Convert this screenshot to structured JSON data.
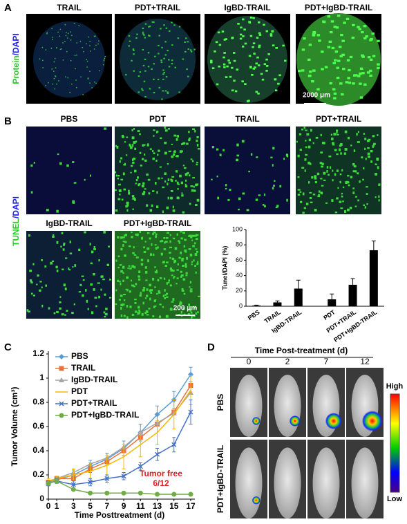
{
  "panel_a": {
    "label": "A",
    "stain": "Protein",
    "counterstain": "/DAPI",
    "columns": [
      "TRAIL",
      "PDT+TRAIL",
      "IgBD-TRAIL",
      "PDT+IgBD-TRAIL"
    ],
    "scale_bar": "2000 μm"
  },
  "panel_b": {
    "label": "B",
    "stain": "TUNEL",
    "counterstain": "/DAPI",
    "images": [
      "PBS",
      "PDT",
      "TRAIL",
      "PDT+TRAIL",
      "IgBD-TRAIL",
      "PDT+IgBD-TRAIL"
    ],
    "scale_bar": "200 μm"
  },
  "panel_c": {
    "label": "C"
  },
  "panel_d": {
    "label": "D",
    "header": "Time Post-treatment (d)",
    "columns": [
      "0",
      "2",
      "7",
      "12"
    ],
    "rows": [
      "PBS",
      "PDT+IgBD-TRAIL"
    ],
    "scale_high": "High",
    "scale_low": "Low"
  },
  "chart_data": [
    {
      "type": "bar",
      "y_label": "Tunel/DAPI (%)",
      "categories": [
        "PBS",
        "TRAIL",
        "IgBD-TRAIL",
        "PDT",
        "PDT+TRAIL",
        "PDT+IgBD-TRAIL"
      ],
      "values": [
        1,
        5,
        23,
        9,
        28,
        73
      ],
      "errors": [
        0.5,
        2,
        11,
        7,
        8,
        12
      ],
      "color": "#000000",
      "ylim": [
        0,
        100
      ],
      "yticks": [
        0,
        20,
        40,
        60,
        80,
        100
      ]
    },
    {
      "type": "line",
      "x_label": "Time Posttreatment (d)",
      "y_label": "Tumor Volume (cm³)",
      "x": [
        0,
        1,
        3,
        5,
        7,
        9,
        11,
        13,
        15,
        17
      ],
      "series": [
        {
          "name": "PBS",
          "color": "#5b9bd5",
          "marker": "diamond",
          "values": [
            0.13,
            0.16,
            0.2,
            0.27,
            0.33,
            0.42,
            0.55,
            0.7,
            0.82,
            1.03
          ],
          "errors": [
            0.02,
            0.02,
            0.04,
            0.05,
            0.05,
            0.06,
            0.07,
            0.07,
            0.07,
            0.06
          ]
        },
        {
          "name": "TRAIL",
          "color": "#e8743b",
          "marker": "square",
          "values": [
            0.14,
            0.17,
            0.17,
            0.25,
            0.31,
            0.4,
            0.51,
            0.62,
            0.72,
            0.94
          ]
        },
        {
          "name": "IgBD-TRAIL",
          "color": "#a5a5a5",
          "marker": "triangle",
          "values": [
            0.13,
            0.17,
            0.22,
            0.29,
            0.34,
            0.43,
            0.55,
            0.63,
            0.71,
            0.88
          ]
        },
        {
          "name": "PDT",
          "color": "#f5b700",
          "marker": "none",
          "values": [
            0.15,
            0.17,
            0.2,
            0.23,
            0.28,
            0.35,
            0.45,
            0.55,
            0.7,
            0.9
          ],
          "errors": [
            0.02,
            0.02,
            0.05,
            0.07,
            0.08,
            0.1,
            0.1,
            0.1,
            0.12,
            0.12
          ]
        },
        {
          "name": "PDT+TRAIL",
          "color": "#4472c4",
          "marker": "cross",
          "values": [
            0.13,
            0.15,
            0.12,
            0.14,
            0.17,
            0.19,
            0.27,
            0.37,
            0.45,
            0.72
          ],
          "errors": [
            0.02,
            0.02,
            0.03,
            0.03,
            0.03,
            0.03,
            0.03,
            0.05,
            0.06,
            0.1
          ]
        },
        {
          "name": "PDT+IgBD-TRAIL",
          "color": "#70ad47",
          "marker": "circle",
          "values": [
            0.13,
            0.15,
            0.08,
            0.05,
            0.05,
            0.05,
            0.05,
            0.04,
            0.04,
            0.04
          ]
        }
      ],
      "xlim": [
        0,
        17
      ],
      "ylim": [
        0,
        1.2
      ],
      "xticks": [
        0,
        1,
        3,
        5,
        7,
        9,
        11,
        13,
        15,
        17
      ],
      "yticks": [
        0,
        0.2,
        0.4,
        0.6,
        0.8,
        1,
        1.2
      ],
      "annotations": [
        "Tumor free",
        "6/12"
      ],
      "annotation_color": "#e02020"
    }
  ]
}
